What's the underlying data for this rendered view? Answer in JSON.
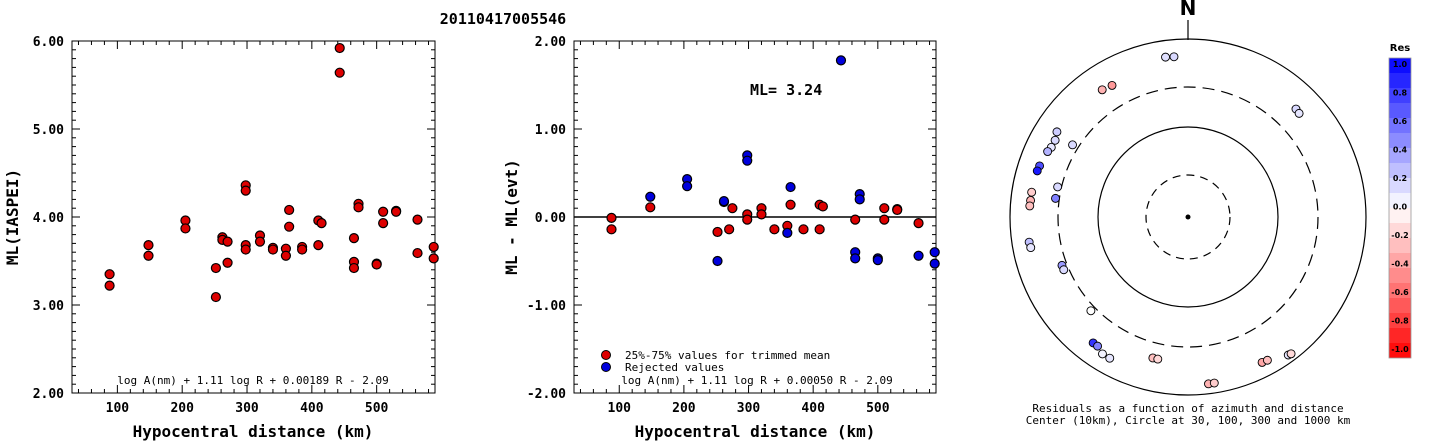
{
  "event_title": "20110417005546",
  "chart_data": [
    {
      "type": "scatter",
      "ylabel": "ML(IASPEI)",
      "xlabel": "Hypocentral distance (km)",
      "ylim": [
        2.0,
        6.0
      ],
      "xlim": [
        30,
        590
      ],
      "yticks": [
        "2.00",
        "3.00",
        "4.00",
        "5.00",
        "6.00"
      ],
      "xticks": [
        "100",
        "200",
        "300",
        "400",
        "500"
      ],
      "formula": "log A(nm) + 1.11 log R + 0.00189 R - 2.09",
      "series": [
        {
          "color": "#dd0000",
          "points": [
            [
              88,
              3.35
            ],
            [
              88,
              3.22
            ],
            [
              148,
              3.68
            ],
            [
              148,
              3.56
            ],
            [
              205,
              3.96
            ],
            [
              205,
              3.87
            ],
            [
              252,
              3.42
            ],
            [
              252,
              3.09
            ],
            [
              262,
              3.77
            ],
            [
              262,
              3.74
            ],
            [
              270,
              3.72
            ],
            [
              270,
              3.48
            ],
            [
              298,
              4.36
            ],
            [
              298,
              4.3
            ],
            [
              298,
              3.68
            ],
            [
              298,
              3.63
            ],
            [
              320,
              3.79
            ],
            [
              320,
              3.72
            ],
            [
              340,
              3.65
            ],
            [
              340,
              3.63
            ],
            [
              360,
              3.64
            ],
            [
              360,
              3.56
            ],
            [
              365,
              4.08
            ],
            [
              365,
              3.89
            ],
            [
              385,
              3.66
            ],
            [
              385,
              3.63
            ],
            [
              410,
              3.68
            ],
            [
              410,
              3.96
            ],
            [
              415,
              3.93
            ],
            [
              443,
              5.92
            ],
            [
              443,
              5.64
            ],
            [
              465,
              3.76
            ],
            [
              465,
              3.49
            ],
            [
              465,
              3.42
            ],
            [
              472,
              4.15
            ],
            [
              472,
              4.11
            ],
            [
              500,
              3.47
            ],
            [
              500,
              3.46
            ],
            [
              510,
              4.06
            ],
            [
              510,
              3.93
            ],
            [
              530,
              4.07
            ],
            [
              530,
              4.06
            ],
            [
              563,
              3.97
            ],
            [
              563,
              3.59
            ],
            [
              588,
              3.66
            ],
            [
              588,
              3.53
            ]
          ]
        }
      ]
    },
    {
      "type": "scatter",
      "ylabel": "ML - ML(evt)",
      "xlabel": "Hypocentral distance (km)",
      "ylim": [
        -2.0,
        2.0
      ],
      "xlim": [
        30,
        590
      ],
      "yticks": [
        "-2.00",
        "-1.00",
        "0.00",
        "1.00",
        "2.00"
      ],
      "xticks": [
        "100",
        "200",
        "300",
        "400",
        "500"
      ],
      "annotation": "ML= 3.24",
      "formula": "log A(nm) + 1.11 log R + 0.00050 R - 2.09",
      "series": [
        {
          "name": "25%-75% values for trimmed mean",
          "color": "#dd0000",
          "points": [
            [
              88,
              -0.01
            ],
            [
              88,
              -0.14
            ],
            [
              148,
              0.11
            ],
            [
              252,
              -0.17
            ],
            [
              262,
              0.17
            ],
            [
              270,
              -0.14
            ],
            [
              275,
              0.1
            ],
            [
              298,
              0.03
            ],
            [
              298,
              -0.03
            ],
            [
              320,
              0.1
            ],
            [
              320,
              0.03
            ],
            [
              340,
              -0.14
            ],
            [
              360,
              -0.1
            ],
            [
              365,
              0.14
            ],
            [
              385,
              -0.14
            ],
            [
              410,
              0.14
            ],
            [
              410,
              -0.14
            ],
            [
              415,
              0.12
            ],
            [
              465,
              -0.03
            ],
            [
              510,
              0.1
            ],
            [
              510,
              -0.03
            ],
            [
              530,
              0.09
            ],
            [
              530,
              0.08
            ],
            [
              563,
              -0.07
            ]
          ]
        },
        {
          "name": "Rejected values",
          "color": "#0000dd",
          "points": [
            [
              148,
              0.23
            ],
            [
              205,
              0.43
            ],
            [
              205,
              0.35
            ],
            [
              252,
              -0.5
            ],
            [
              262,
              0.18
            ],
            [
              298,
              0.7
            ],
            [
              298,
              0.64
            ],
            [
              360,
              -0.18
            ],
            [
              365,
              0.34
            ],
            [
              443,
              1.78
            ],
            [
              465,
              -0.4
            ],
            [
              465,
              -0.47
            ],
            [
              472,
              0.26
            ],
            [
              472,
              0.2
            ],
            [
              500,
              -0.47
            ],
            [
              500,
              -0.49
            ],
            [
              563,
              -0.44
            ],
            [
              588,
              -0.4
            ],
            [
              588,
              -0.53
            ]
          ]
        }
      ]
    },
    {
      "type": "polar-scatter",
      "north_label": "N",
      "caption_line1": "Residuals as a function of azimuth and distance",
      "caption_line2": "Center (10km), Circle at 30, 100, 300 and 1000 km",
      "colorbar": {
        "title": "Res",
        "ticks": [
          "1.0",
          "0.8",
          "0.6",
          "0.4",
          "0.2",
          "0.0",
          "-0.2",
          "-0.4",
          "-0.6",
          "-0.8",
          "-1.0"
        ],
        "max_color": "#0000ff",
        "zero_color": "#ffffff",
        "min_color": "#ff0000"
      },
      "points": [
        {
          "az": 355,
          "dist": 650,
          "res": 0.15
        },
        {
          "az": 352,
          "dist": 660,
          "res": 0.12
        },
        {
          "az": 45,
          "dist": 530,
          "res": 0.15
        },
        {
          "az": 47,
          "dist": 520,
          "res": 0.1
        },
        {
          "az": 330,
          "dist": 520,
          "res": -0.4
        },
        {
          "az": 326,
          "dist": 540,
          "res": -0.3
        },
        {
          "az": 303,
          "dist": 580,
          "res": 0.2
        },
        {
          "az": 300,
          "dist": 540,
          "res": 0.15
        },
        {
          "az": 297,
          "dist": 540,
          "res": 0.1
        },
        {
          "az": 295,
          "dist": 560,
          "res": 0.3
        },
        {
          "az": 302,
          "dist": 350,
          "res": 0.15
        },
        {
          "az": 289,
          "dist": 590,
          "res": 0.7
        },
        {
          "az": 287,
          "dist": 600,
          "res": 0.9
        },
        {
          "az": 283,
          "dist": 330,
          "res": 0.15
        },
        {
          "az": 278,
          "dist": 330,
          "res": 0.5
        },
        {
          "az": 279,
          "dist": 610,
          "res": -0.2
        },
        {
          "az": 276,
          "dist": 610,
          "res": -0.3
        },
        {
          "az": 274,
          "dist": 615,
          "res": -0.25
        },
        {
          "az": 261,
          "dist": 650,
          "res": 0.25
        },
        {
          "az": 259,
          "dist": 640,
          "res": 0.1
        },
        {
          "az": 249,
          "dist": 340,
          "res": 0.4
        },
        {
          "az": 247,
          "dist": 340,
          "res": 0.15
        },
        {
          "az": 226,
          "dist": 340,
          "res": 0.0
        },
        {
          "az": 217,
          "dist": 600,
          "res": 0.8
        },
        {
          "az": 215,
          "dist": 600,
          "res": 0.5
        },
        {
          "az": 212,
          "dist": 660,
          "res": 0.05
        },
        {
          "az": 209,
          "dist": 660,
          "res": 0.1
        },
        {
          "az": 194,
          "dist": 440,
          "res": -0.25
        },
        {
          "az": 192,
          "dist": 440,
          "res": -0.15
        },
        {
          "az": 173,
          "dist": 780,
          "res": -0.3
        },
        {
          "az": 171,
          "dist": 780,
          "res": -0.2
        },
        {
          "az": 153,
          "dist": 690,
          "res": -0.35
        },
        {
          "az": 151,
          "dist": 700,
          "res": -0.25
        },
        {
          "az": 144,
          "dist": 830,
          "res": 0.1
        },
        {
          "az": 143,
          "dist": 845,
          "res": -0.15
        }
      ]
    }
  ]
}
